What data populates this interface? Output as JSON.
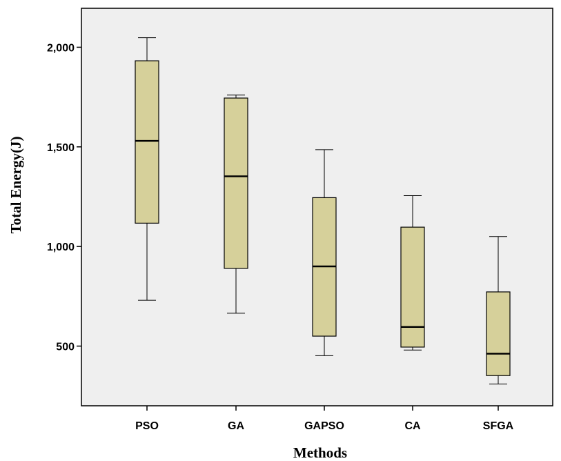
{
  "chart_data": {
    "type": "boxplot",
    "xlabel": "Methods",
    "ylabel": "Total Energy(J)",
    "categories": [
      "PSO",
      "GA",
      "GAPSO",
      "CA",
      "SFGA"
    ],
    "boxes": [
      {
        "category": "PSO",
        "min": 730,
        "q1": 1117,
        "median": 1530,
        "q3": 1932,
        "max": 2048
      },
      {
        "category": "GA",
        "min": 665,
        "q1": 890,
        "median": 1352,
        "q3": 1745,
        "max": 1760
      },
      {
        "category": "GAPSO",
        "min": 452,
        "q1": 550,
        "median": 900,
        "q3": 1245,
        "max": 1486
      },
      {
        "category": "CA",
        "min": 480,
        "q1": 495,
        "median": 596,
        "q3": 1097,
        "max": 1255
      },
      {
        "category": "SFGA",
        "min": 310,
        "q1": 352,
        "median": 462,
        "q3": 772,
        "max": 1050
      }
    ],
    "y_ticks": [
      500,
      1000,
      1500,
      2000
    ],
    "y_tick_labels": [
      "500",
      "1,000",
      "1,500",
      "2,000"
    ],
    "ylim": [
      200,
      2200
    ],
    "grid": false,
    "colors": {
      "plot_background": "#efefef",
      "box_fill": "#d6d09a",
      "box_stroke": "#000000"
    }
  }
}
